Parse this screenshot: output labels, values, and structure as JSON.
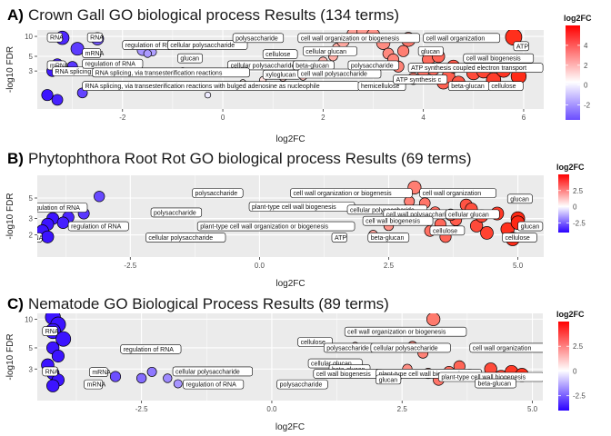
{
  "chart_data": [
    {
      "type": "scatter",
      "panel_letter": "A)",
      "title": "Crown Gall GO biological process Results (134 terms)",
      "xlabel": "log2FC",
      "ylabel": "-log10 FDR",
      "xlim": [
        -3.7,
        6.4
      ],
      "ylim": [
        0.8,
        12.5
      ],
      "y_log_scale": true,
      "xticks": [
        -2,
        0,
        2,
        4,
        6
      ],
      "yticks": [
        3,
        5,
        10
      ],
      "grid": true,
      "legend": {
        "title": "log2FC",
        "placement": "right",
        "ticks": [
          4,
          2,
          0,
          -2
        ],
        "range": [
          -3.5,
          6
        ]
      },
      "points": [
        {
          "x": -3.2,
          "y": 9.5
        },
        {
          "x": -2.5,
          "y": 9.2
        },
        {
          "x": -2.9,
          "y": 6.5
        },
        {
          "x": -3.3,
          "y": 3.8
        },
        {
          "x": -3.0,
          "y": 3.5
        },
        {
          "x": -3.4,
          "y": 3.0
        },
        {
          "x": -3.5,
          "y": 1.3
        },
        {
          "x": -3.3,
          "y": 1.1
        },
        {
          "x": -2.8,
          "y": 1.4
        },
        {
          "x": -1.6,
          "y": 6.2
        },
        {
          "x": -1.4,
          "y": 5.8
        },
        {
          "x": -1.5,
          "y": 5.5
        },
        {
          "x": -0.8,
          "y": 3.0
        },
        {
          "x": -1.0,
          "y": 2.8
        },
        {
          "x": -0.3,
          "y": 1.3
        },
        {
          "x": 0.4,
          "y": 2.0
        },
        {
          "x": 0.8,
          "y": 2.2
        },
        {
          "x": 1.2,
          "y": 2.4
        },
        {
          "x": 1.6,
          "y": 2.5
        },
        {
          "x": 1.8,
          "y": 3.2
        },
        {
          "x": 2.0,
          "y": 4.2
        },
        {
          "x": 2.2,
          "y": 5.0
        },
        {
          "x": 2.3,
          "y": 6.5
        },
        {
          "x": 2.4,
          "y": 8.5
        },
        {
          "x": 2.6,
          "y": 10.8
        },
        {
          "x": 2.8,
          "y": 12.0
        },
        {
          "x": 3.0,
          "y": 10.5
        },
        {
          "x": 3.2,
          "y": 8.0
        },
        {
          "x": 3.3,
          "y": 5.5
        },
        {
          "x": 3.4,
          "y": 4.5
        },
        {
          "x": 3.5,
          "y": 3.5
        },
        {
          "x": 3.6,
          "y": 6.0
        },
        {
          "x": 3.7,
          "y": 9.0
        },
        {
          "x": 3.8,
          "y": 2.3
        },
        {
          "x": 4.0,
          "y": 3.0
        },
        {
          "x": 4.1,
          "y": 4.5
        },
        {
          "x": 4.2,
          "y": 3.2
        },
        {
          "x": 4.3,
          "y": 5.0
        },
        {
          "x": 4.4,
          "y": 2.0
        },
        {
          "x": 4.5,
          "y": 2.5
        },
        {
          "x": 4.6,
          "y": 3.5
        },
        {
          "x": 4.7,
          "y": 2.0
        },
        {
          "x": 5.0,
          "y": 2.8
        },
        {
          "x": 5.2,
          "y": 3.0
        },
        {
          "x": 5.4,
          "y": 2.2
        },
        {
          "x": 5.6,
          "y": 3.1
        },
        {
          "x": 5.8,
          "y": 9.8
        },
        {
          "x": 5.9,
          "y": 2.5
        }
      ],
      "labels": [
        {
          "text": "RNA",
          "x": -3.5,
          "y": 9.5
        },
        {
          "text": "RNA",
          "x": -2.7,
          "y": 9.5
        },
        {
          "text": "mRNA",
          "x": -2.8,
          "y": 5.5
        },
        {
          "text": "mRNA",
          "x": -3.5,
          "y": 3.6
        },
        {
          "text": "RNA splicing",
          "x": -3.4,
          "y": 2.9
        },
        {
          "text": "regulation of RNA",
          "x": -2.0,
          "y": 7.3
        },
        {
          "text": "regulation of RNA",
          "x": -2.8,
          "y": 3.8
        },
        {
          "text": "cellular polysaccharide",
          "x": -1.1,
          "y": 7.3
        },
        {
          "text": "glucan",
          "x": -0.9,
          "y": 4.6
        },
        {
          "text": "cellular polysaccharide",
          "x": 0.1,
          "y": 3.6
        },
        {
          "text": "RNA splicing, via transesterification reactions",
          "x": -2.6,
          "y": 2.8
        },
        {
          "text": "RNA splicing, via transesterification reactions with bulged adenosine as nucleophile",
          "x": -2.8,
          "y": 1.75
        },
        {
          "text": "polysaccharide",
          "x": 0.2,
          "y": 9.3
        },
        {
          "text": "cell wall organization or biogenesis",
          "x": 1.5,
          "y": 9.3
        },
        {
          "text": "cellulose",
          "x": 0.8,
          "y": 5.3
        },
        {
          "text": "cellular glucan",
          "x": 1.6,
          "y": 5.9
        },
        {
          "text": "xyloglucan",
          "x": 0.8,
          "y": 2.6
        },
        {
          "text": "beta-glucan",
          "x": 1.4,
          "y": 3.6
        },
        {
          "text": "cell wall polysaccharide",
          "x": 1.5,
          "y": 2.7
        },
        {
          "text": "hemicellulose",
          "x": 2.7,
          "y": 1.75
        },
        {
          "text": "polysaccharide",
          "x": 2.5,
          "y": 3.6
        },
        {
          "text": "cell wall organization",
          "x": 4.0,
          "y": 9.3
        },
        {
          "text": "glucan",
          "x": 3.9,
          "y": 5.9
        },
        {
          "text": "cell wall biogenesis",
          "x": 4.8,
          "y": 4.6
        },
        {
          "text": "ATP",
          "x": 5.8,
          "y": 7.0
        },
        {
          "text": "ATP synthesis coupled electron transport",
          "x": 3.7,
          "y": 3.3
        },
        {
          "text": "ATP synthesis c",
          "x": 3.4,
          "y": 2.2
        },
        {
          "text": "beta-glucan",
          "x": 4.5,
          "y": 1.75
        },
        {
          "text": "cellulose",
          "x": 5.3,
          "y": 1.75
        }
      ]
    },
    {
      "type": "scatter",
      "panel_letter": "B)",
      "title": "Phytophthora Root Rot GO biological process Results (69 terms)",
      "xlabel": "log2FC",
      "ylabel": "-log10 FDR",
      "xlim": [
        -4.3,
        5.5
      ],
      "ylim": [
        1.15,
        8.8
      ],
      "y_log_scale": true,
      "xticks": [
        -2.5,
        0.0,
        2.5,
        5.0
      ],
      "yticks": [
        2,
        3,
        5
      ],
      "grid": true,
      "legend": {
        "title": "log2FC",
        "placement": "right",
        "ticks": [
          2.5,
          0.0,
          -2.5
        ],
        "range": [
          -4,
          5
        ]
      },
      "points": [
        {
          "x": -3.1,
          "y": 5.2
        },
        {
          "x": -3.4,
          "y": 3.4
        },
        {
          "x": -3.7,
          "y": 3.1
        },
        {
          "x": -4.0,
          "y": 3.0
        },
        {
          "x": -3.8,
          "y": 2.7
        },
        {
          "x": -4.1,
          "y": 2.6
        },
        {
          "x": -4.2,
          "y": 2.2
        },
        {
          "x": -4.1,
          "y": 1.9
        },
        {
          "x": -1.2,
          "y": 1.9
        },
        {
          "x": 2.2,
          "y": 2.0
        },
        {
          "x": 2.5,
          "y": 2.5
        },
        {
          "x": 2.9,
          "y": 4.6
        },
        {
          "x": 3.0,
          "y": 6.5
        },
        {
          "x": 3.2,
          "y": 4.4
        },
        {
          "x": 3.3,
          "y": 2.2
        },
        {
          "x": 3.4,
          "y": 3.5
        },
        {
          "x": 3.5,
          "y": 2.6
        },
        {
          "x": 3.6,
          "y": 1.9
        },
        {
          "x": 3.8,
          "y": 2.9
        },
        {
          "x": 4.0,
          "y": 4.2
        },
        {
          "x": 4.1,
          "y": 3.8
        },
        {
          "x": 4.2,
          "y": 2.5
        },
        {
          "x": 4.4,
          "y": 2.1
        },
        {
          "x": 4.6,
          "y": 3.4
        },
        {
          "x": 4.8,
          "y": 2.3
        },
        {
          "x": 4.9,
          "y": 1.8
        },
        {
          "x": 5.0,
          "y": 3.0
        },
        {
          "x": 5.0,
          "y": 2.7
        },
        {
          "x": 4.3,
          "y": 3.2
        },
        {
          "x": 3.7,
          "y": 3.3
        }
      ],
      "labels": [
        {
          "text": "regulation of RNA",
          "x": -4.5,
          "y": 3.9
        },
        {
          "text": "regulation of RNA",
          "x": -3.7,
          "y": 2.45
        },
        {
          "text": "RNA",
          "x": -4.5,
          "y": 1.85
        },
        {
          "text": "polysaccharide",
          "x": -1.3,
          "y": 5.6
        },
        {
          "text": "polysaccharide",
          "x": -2.1,
          "y": 3.45
        },
        {
          "text": "plant-type cell wall biogenesis",
          "x": -0.2,
          "y": 4.0
        },
        {
          "text": "plant-type cell wall organization or biogenesis",
          "x": -1.2,
          "y": 2.45
        },
        {
          "text": "cellular polysaccharide",
          "x": -2.2,
          "y": 1.85
        },
        {
          "text": "cell wall organization or biogenesis",
          "x": 0.6,
          "y": 5.6
        },
        {
          "text": "cell wall organization",
          "x": 3.1,
          "y": 5.6
        },
        {
          "text": "glucan",
          "x": 4.8,
          "y": 4.85
        },
        {
          "text": "cellular polysaccharide",
          "x": 1.7,
          "y": 3.7
        },
        {
          "text": "cell wall polysaccharide",
          "x": 2.4,
          "y": 3.3
        },
        {
          "text": "cell wall biogenesis",
          "x": 2.0,
          "y": 2.8
        },
        {
          "text": "cellular glucan",
          "x": 3.6,
          "y": 3.3
        },
        {
          "text": "glucan",
          "x": 5.0,
          "y": 2.45
        },
        {
          "text": "cellulose",
          "x": 3.3,
          "y": 2.2
        },
        {
          "text": "ATP",
          "x": 1.4,
          "y": 1.85
        },
        {
          "text": "beta-glucan",
          "x": 2.1,
          "y": 1.85
        },
        {
          "text": "cellulose",
          "x": 4.7,
          "y": 1.85
        }
      ]
    },
    {
      "type": "scatter",
      "panel_letter": "C)",
      "title": "Nematode GO Biological Process Results (89 terms)",
      "xlabel": "log2FC",
      "ylabel": "-log10 FDR",
      "xlim": [
        -4.5,
        5.2
      ],
      "ylim": [
        1.4,
        11.5
      ],
      "y_log_scale": true,
      "xticks": [
        -2.5,
        0.0,
        2.5,
        5.0
      ],
      "yticks": [
        3,
        5,
        10
      ],
      "grid": true,
      "legend": {
        "title": "log2FC",
        "placement": "right",
        "ticks": [
          2.5,
          0.0,
          -2.5
        ],
        "range": [
          -4,
          5
        ]
      },
      "points": [
        {
          "x": -4.2,
          "y": 10.5
        },
        {
          "x": -4.1,
          "y": 8.8
        },
        {
          "x": -4.2,
          "y": 7.5
        },
        {
          "x": -4.0,
          "y": 6.2
        },
        {
          "x": -4.2,
          "y": 5.0
        },
        {
          "x": -4.1,
          "y": 4.1
        },
        {
          "x": -4.3,
          "y": 3.3
        },
        {
          "x": -4.2,
          "y": 2.7
        },
        {
          "x": -4.1,
          "y": 2.3
        },
        {
          "x": -4.2,
          "y": 2.0
        },
        {
          "x": -3.0,
          "y": 2.5
        },
        {
          "x": -2.5,
          "y": 2.4
        },
        {
          "x": -2.3,
          "y": 2.8
        },
        {
          "x": -2.0,
          "y": 2.4
        },
        {
          "x": -1.8,
          "y": 2.1
        },
        {
          "x": 1.6,
          "y": 5.2
        },
        {
          "x": 2.1,
          "y": 2.4
        },
        {
          "x": 2.4,
          "y": 2.5
        },
        {
          "x": 2.6,
          "y": 3.0
        },
        {
          "x": 2.7,
          "y": 5.2
        },
        {
          "x": 2.9,
          "y": 4.4
        },
        {
          "x": 3.0,
          "y": 2.7
        },
        {
          "x": 3.2,
          "y": 2.3
        },
        {
          "x": 3.4,
          "y": 2.8
        },
        {
          "x": 3.6,
          "y": 3.2
        },
        {
          "x": 3.8,
          "y": 2.6
        },
        {
          "x": 4.0,
          "y": 2.4
        },
        {
          "x": 4.2,
          "y": 3.0
        },
        {
          "x": 4.4,
          "y": 2.5
        },
        {
          "x": 4.6,
          "y": 2.8
        },
        {
          "x": 4.8,
          "y": 2.6
        },
        {
          "x": 3.1,
          "y": 10.0
        }
      ],
      "labels": [
        {
          "text": "RNA",
          "x": -4.4,
          "y": 7.4
        },
        {
          "text": "RNA",
          "x": -4.4,
          "y": 2.8
        },
        {
          "text": "mRNA",
          "x": -3.5,
          "y": 2.75
        },
        {
          "text": "mRNA",
          "x": -3.6,
          "y": 2.05
        },
        {
          "text": "regulation of RNA",
          "x": -2.9,
          "y": 4.8
        },
        {
          "text": "cellular polysaccharide",
          "x": -1.9,
          "y": 2.8
        },
        {
          "text": "regulation of RNA",
          "x": -1.7,
          "y": 2.05
        },
        {
          "text": "polysaccharide",
          "x": 0.1,
          "y": 2.05
        },
        {
          "text": "cell wall organization or biogenesis",
          "x": 1.4,
          "y": 7.3
        },
        {
          "text": "cellulose",
          "x": 0.5,
          "y": 5.7
        },
        {
          "text": "polysaccharide",
          "x": 1.0,
          "y": 4.95
        },
        {
          "text": "cellular polysaccharide",
          "x": 1.9,
          "y": 4.95
        },
        {
          "text": "cell wall organization",
          "x": 3.8,
          "y": 4.95
        },
        {
          "text": "cellular glucan",
          "x": 0.7,
          "y": 3.4
        },
        {
          "text": "beta-glucan",
          "x": 1.1,
          "y": 2.95
        },
        {
          "text": "cell wall biogenesis",
          "x": 0.8,
          "y": 2.65
        },
        {
          "text": "plant-type cell wall biogenesis",
          "x": 2.0,
          "y": 2.65
        },
        {
          "text": "plant-type cell wall biogenesis",
          "x": 3.2,
          "y": 2.45
        },
        {
          "text": "glucan",
          "x": 2.0,
          "y": 2.3
        },
        {
          "text": "beta-glucan",
          "x": 3.9,
          "y": 2.1
        }
      ]
    }
  ]
}
